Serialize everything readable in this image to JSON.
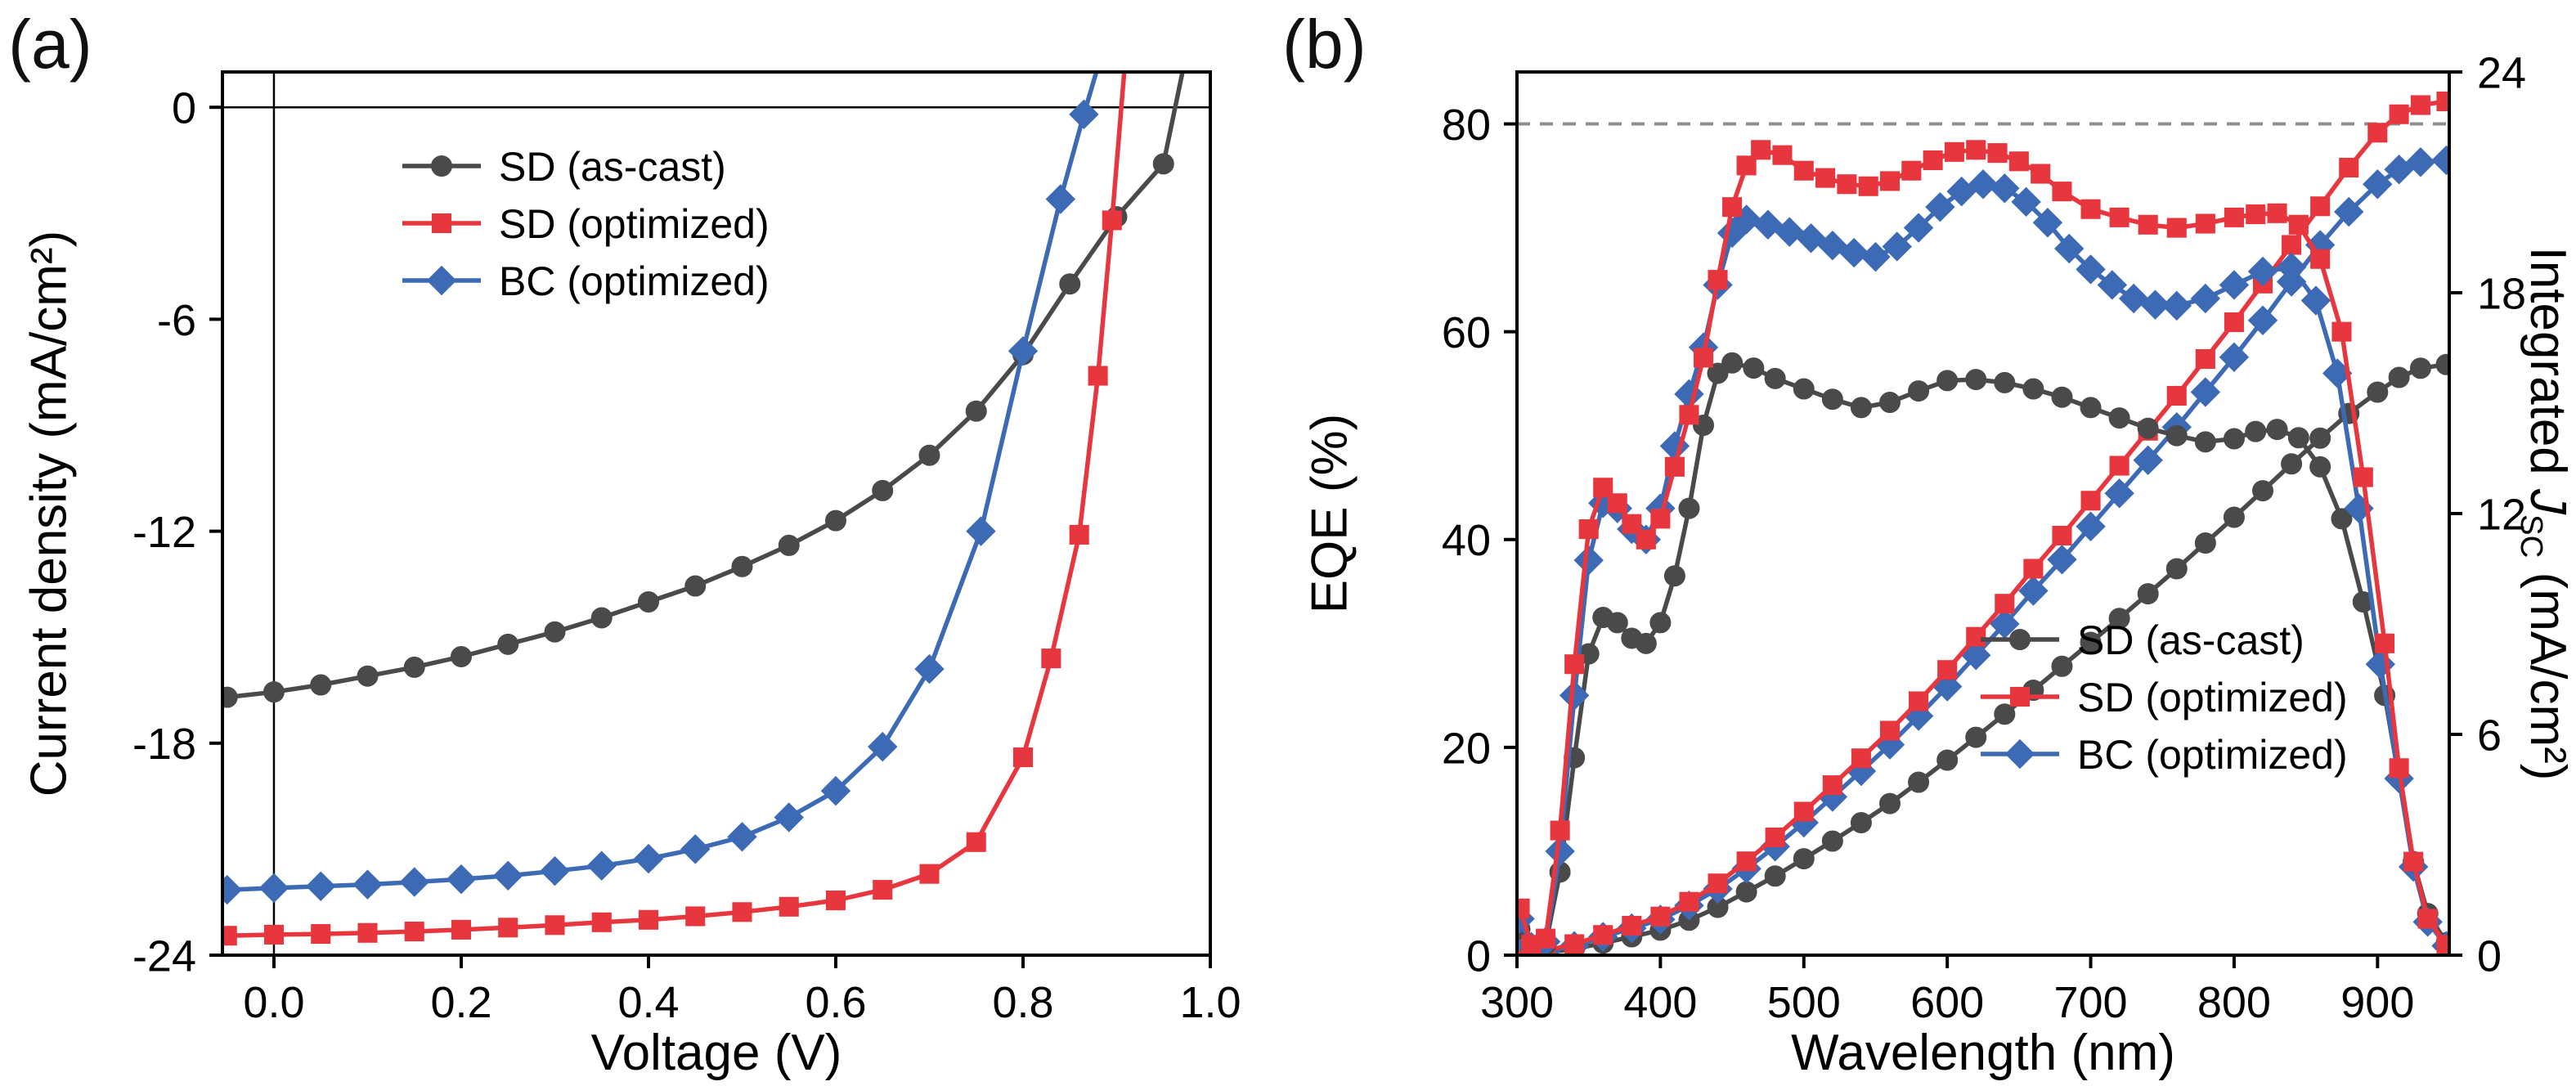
{
  "figure": {
    "background": "#ffffff"
  },
  "chart_data": [
    {
      "id": "jv-curves",
      "type": "line",
      "panel_label": "(a)",
      "xlabel": "Voltage (V)",
      "ylabel": "Current density (mA/cm²)",
      "xlim": [
        -0.055,
        1.0
      ],
      "ylim": [
        -24,
        1.0
      ],
      "x_ticks": [
        0.0,
        0.2,
        0.4,
        0.6,
        0.8,
        1.0
      ],
      "x_tick_labels": [
        "0.0",
        "0.2",
        "0.4",
        "0.6",
        "0.8",
        "1.0"
      ],
      "y_ticks": [
        0,
        -6,
        -12,
        -18,
        -24
      ],
      "y_tick_labels": [
        "0",
        "-6",
        "-12",
        "-18",
        "-24"
      ],
      "grid": false,
      "zero_lines": [
        {
          "axis": "y",
          "value": 0
        },
        {
          "axis": "x",
          "value": 0
        }
      ],
      "legend": {
        "position": "upper-left",
        "items": [
          {
            "label": "SD (as-cast)",
            "color": "#4a4a4a",
            "marker": "circle"
          },
          {
            "label": "SD (optimized)",
            "color": "#e8363f",
            "marker": "square"
          },
          {
            "label": "BC (optimized)",
            "color": "#3d6ab5",
            "marker": "diamond"
          }
        ]
      },
      "series": [
        {
          "name": "SD (as-cast)",
          "color": "#4a4a4a",
          "marker": "circle",
          "axis": "left",
          "x": [
            -0.05,
            0,
            0.05,
            0.1,
            0.15,
            0.2,
            0.25,
            0.3,
            0.35,
            0.4,
            0.45,
            0.5,
            0.55,
            0.6,
            0.65,
            0.7,
            0.75,
            0.8,
            0.85,
            0.9,
            0.95,
            0.975
          ],
          "y": [
            -16.7,
            -16.55,
            -16.35,
            -16.1,
            -15.85,
            -15.55,
            -15.2,
            -14.85,
            -14.45,
            -14.0,
            -13.55,
            -13.0,
            -12.4,
            -11.7,
            -10.85,
            -9.85,
            -8.6,
            -7.0,
            -5.0,
            -3.1,
            -1.6,
            1.6
          ]
        },
        {
          "name": "BC (optimized)",
          "color": "#3d6ab5",
          "marker": "diamond",
          "axis": "left",
          "x": [
            -0.05,
            0,
            0.05,
            0.1,
            0.15,
            0.2,
            0.25,
            0.3,
            0.35,
            0.4,
            0.45,
            0.5,
            0.55,
            0.6,
            0.65,
            0.7,
            0.755,
            0.8,
            0.84,
            0.865,
            0.885
          ],
          "y": [
            -22.15,
            -22.1,
            -22.05,
            -22.0,
            -21.93,
            -21.85,
            -21.75,
            -21.62,
            -21.47,
            -21.27,
            -21.0,
            -20.65,
            -20.1,
            -19.35,
            -18.1,
            -15.9,
            -12.0,
            -6.9,
            -2.6,
            -0.2,
            1.6
          ]
        },
        {
          "name": "SD (optimized)",
          "color": "#e8363f",
          "marker": "square",
          "axis": "left",
          "x": [
            -0.05,
            0,
            0.05,
            0.1,
            0.15,
            0.2,
            0.25,
            0.3,
            0.35,
            0.4,
            0.45,
            0.5,
            0.55,
            0.6,
            0.65,
            0.7,
            0.75,
            0.8,
            0.83,
            0.86,
            0.88,
            0.895,
            0.91
          ],
          "y": [
            -23.45,
            -23.42,
            -23.4,
            -23.37,
            -23.33,
            -23.28,
            -23.22,
            -23.15,
            -23.07,
            -23.0,
            -22.9,
            -22.78,
            -22.63,
            -22.45,
            -22.15,
            -21.7,
            -20.8,
            -18.4,
            -15.6,
            -12.1,
            -7.6,
            -3.2,
            1.6
          ]
        }
      ]
    },
    {
      "id": "eqe-spectra",
      "type": "line",
      "panel_label": "(b)",
      "xlabel": "Wavelength (nm)",
      "ylabel_left": "EQE (%)",
      "ylabel_right": {
        "prefix": "Integrated ",
        "variable": "J",
        "subscript": "SC",
        "suffix": " (mA/cm²)"
      },
      "xlim": [
        300,
        950
      ],
      "ylim_left": [
        0,
        85
      ],
      "ylim_right": [
        0,
        24
      ],
      "x_ticks": [
        300,
        400,
        500,
        600,
        700,
        800,
        900
      ],
      "x_tick_labels": [
        "300",
        "400",
        "500",
        "600",
        "700",
        "800",
        "900"
      ],
      "y_ticks_left": [
        0,
        20,
        40,
        60,
        80
      ],
      "y_tick_labels_left": [
        "0",
        "20",
        "40",
        "60",
        "80"
      ],
      "y_ticks_right": [
        0,
        6,
        12,
        18,
        24
      ],
      "y_tick_labels_right": [
        "0",
        "6",
        "12",
        "18",
        "24"
      ],
      "grid": false,
      "dashed_guide": 80,
      "dashed_color": "#8f8f8f",
      "legend": {
        "position": "lower-right",
        "items": [
          {
            "label": "SD (as-cast)",
            "color": "#4a4a4a",
            "marker": "circle"
          },
          {
            "label": "SD (optimized)",
            "color": "#e8363f",
            "marker": "square"
          },
          {
            "label": "BC (optimized)",
            "color": "#3d6ab5",
            "marker": "diamond"
          }
        ]
      },
      "series": [
        {
          "name": "SD (as-cast) integrated Jsc",
          "color": "#4a4a4a",
          "marker": "circle",
          "axis": "right",
          "x": [
            302,
            320,
            340,
            360,
            380,
            400,
            420,
            440,
            460,
            480,
            500,
            520,
            540,
            560,
            580,
            600,
            620,
            640,
            660,
            680,
            700,
            720,
            740,
            760,
            780,
            800,
            820,
            840,
            860,
            880,
            900,
            915,
            930,
            948
          ],
          "y": [
            0.03,
            0.07,
            0.17,
            0.33,
            0.5,
            0.68,
            0.95,
            1.3,
            1.72,
            2.15,
            2.62,
            3.1,
            3.6,
            4.12,
            4.7,
            5.3,
            5.92,
            6.55,
            7.2,
            7.85,
            8.5,
            9.15,
            9.82,
            10.5,
            11.2,
            11.9,
            12.62,
            13.35,
            14.05,
            14.72,
            15.3,
            15.7,
            15.95,
            16.05
          ]
        },
        {
          "name": "BC (optimized) integrated Jsc",
          "color": "#3d6ab5",
          "marker": "diamond",
          "axis": "right",
          "x": [
            302,
            320,
            340,
            360,
            380,
            400,
            420,
            440,
            460,
            480,
            500,
            520,
            540,
            560,
            580,
            600,
            620,
            640,
            660,
            680,
            700,
            720,
            740,
            760,
            780,
            800,
            820,
            840,
            860,
            880,
            900,
            915,
            930,
            948
          ],
          "y": [
            0.04,
            0.1,
            0.25,
            0.5,
            0.73,
            0.97,
            1.35,
            1.8,
            2.35,
            2.95,
            3.6,
            4.3,
            5.0,
            5.72,
            6.5,
            7.3,
            8.15,
            9.0,
            9.9,
            10.75,
            11.65,
            12.55,
            13.45,
            14.35,
            15.3,
            16.25,
            17.25,
            18.3,
            19.3,
            20.2,
            20.95,
            21.35,
            21.55,
            21.6
          ]
        },
        {
          "name": "SD (optimized) integrated Jsc",
          "color": "#e8363f",
          "marker": "square",
          "axis": "right",
          "x": [
            302,
            320,
            340,
            360,
            380,
            400,
            420,
            440,
            460,
            480,
            500,
            520,
            540,
            560,
            580,
            600,
            620,
            640,
            660,
            680,
            700,
            720,
            740,
            760,
            780,
            800,
            820,
            840,
            860,
            880,
            900,
            915,
            930,
            948
          ],
          "y": [
            0.05,
            0.12,
            0.3,
            0.55,
            0.8,
            1.05,
            1.45,
            1.95,
            2.55,
            3.2,
            3.9,
            4.62,
            5.35,
            6.1,
            6.9,
            7.75,
            8.65,
            9.55,
            10.5,
            11.4,
            12.35,
            13.3,
            14.25,
            15.2,
            16.2,
            17.2,
            18.25,
            19.3,
            20.35,
            21.4,
            22.35,
            22.85,
            23.1,
            23.2
          ]
        },
        {
          "name": "SD (as-cast) EQE",
          "color": "#4a4a4a",
          "marker": "circle",
          "axis": "left",
          "x": [
            302,
            310,
            320,
            330,
            340,
            350,
            360,
            370,
            380,
            390,
            400,
            410,
            420,
            430,
            440,
            450,
            465,
            480,
            500,
            520,
            540,
            560,
            580,
            600,
            620,
            640,
            660,
            680,
            700,
            720,
            740,
            760,
            780,
            800,
            815,
            830,
            845,
            860,
            875,
            890,
            905,
            915,
            925,
            935,
            948
          ],
          "y": [
            2.5,
            0.6,
            1.0,
            8,
            19,
            29,
            32.5,
            32,
            30.5,
            30,
            32,
            36.5,
            43,
            51,
            56,
            57,
            56.5,
            55.5,
            54.5,
            53.5,
            52.7,
            53.2,
            54.3,
            55.3,
            55.4,
            55.1,
            54.5,
            53.7,
            52.7,
            51.7,
            50.7,
            50.0,
            49.4,
            49.7,
            50.4,
            50.6,
            49.8,
            47.0,
            42,
            34,
            25,
            17,
            9,
            4,
            1.2
          ]
        },
        {
          "name": "BC (optimized) EQE",
          "color": "#3d6ab5",
          "marker": "diamond",
          "axis": "left",
          "x": [
            302,
            310,
            320,
            330,
            340,
            350,
            360,
            370,
            380,
            390,
            400,
            410,
            420,
            430,
            440,
            450,
            460,
            475,
            490,
            505,
            520,
            535,
            550,
            565,
            580,
            595,
            610,
            625,
            640,
            655,
            670,
            685,
            700,
            715,
            730,
            745,
            760,
            780,
            800,
            820,
            840,
            857,
            872,
            887,
            902,
            915,
            925,
            935,
            948
          ],
          "y": [
            3.5,
            0.8,
            1.3,
            10,
            25,
            38,
            43.5,
            43,
            41,
            40,
            43,
            49,
            54,
            58.5,
            64.5,
            69.5,
            70.8,
            70.3,
            69.6,
            69,
            68.3,
            67.6,
            67.2,
            68.2,
            70,
            72,
            73.5,
            74.2,
            73.8,
            72.5,
            70.5,
            68,
            66,
            64.5,
            63.2,
            62.6,
            62.5,
            63.2,
            64.5,
            65.8,
            66.2,
            63,
            56,
            43,
            28,
            17,
            8.5,
            3.2,
            0.9
          ]
        },
        {
          "name": "SD (optimized) EQE",
          "color": "#e8363f",
          "marker": "square",
          "axis": "left",
          "x": [
            302,
            310,
            320,
            330,
            340,
            350,
            360,
            370,
            380,
            390,
            400,
            410,
            420,
            430,
            440,
            450,
            460,
            470,
            485,
            500,
            515,
            530,
            545,
            560,
            575,
            590,
            605,
            620,
            635,
            650,
            665,
            680,
            700,
            720,
            740,
            760,
            780,
            800,
            815,
            830,
            845,
            860,
            875,
            890,
            905,
            915,
            925,
            935,
            948
          ],
          "y": [
            4.5,
            1.0,
            1.6,
            12,
            28,
            41,
            45,
            43.5,
            41.5,
            40,
            42,
            47,
            52,
            57.5,
            65,
            72,
            76,
            77.5,
            77,
            75.5,
            74.8,
            74.2,
            74,
            74.5,
            75.5,
            76.5,
            77.3,
            77.5,
            77.2,
            76.4,
            75.2,
            73.5,
            71.8,
            71,
            70.3,
            70,
            70.4,
            71,
            71.3,
            71.4,
            70.3,
            67,
            60,
            46,
            30,
            18,
            9,
            3.5,
            1
          ]
        }
      ]
    }
  ]
}
